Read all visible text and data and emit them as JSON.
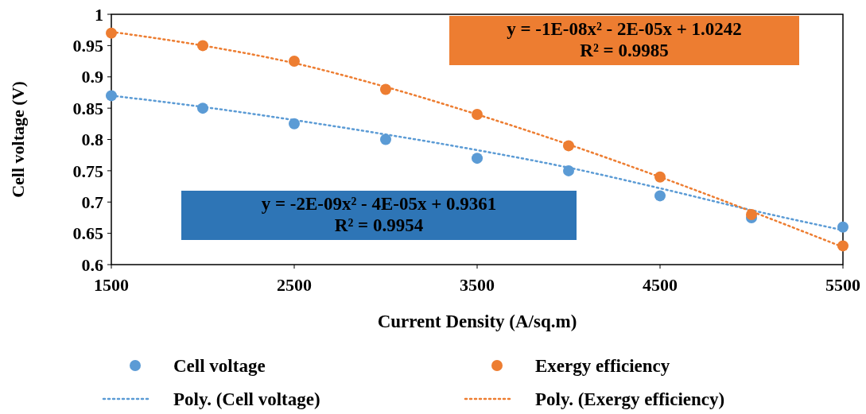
{
  "chart_data": {
    "type": "scatter",
    "xlabel": "Current Density (A/sq.m)",
    "ylabel": "Cell voltage (V)",
    "x": [
      1500,
      2000,
      2500,
      3000,
      3500,
      4000,
      4500,
      5000,
      5500
    ],
    "series": [
      {
        "name": "Cell voltage",
        "color": "#5b9bd5",
        "marker": "circle",
        "values": [
          0.87,
          0.85,
          0.825,
          0.8,
          0.77,
          0.75,
          0.71,
          0.675,
          0.66
        ]
      },
      {
        "name": "Exergy efficiency",
        "color": "#ed7d31",
        "marker": "circle",
        "values": [
          0.97,
          0.95,
          0.925,
          0.88,
          0.84,
          0.79,
          0.74,
          0.68,
          0.63
        ]
      },
      {
        "name": "Poly. (Cell voltage)",
        "type": "line",
        "color": "#5b9bd5",
        "line_style": "dotted",
        "values": [
          0.87,
          0.852,
          0.831,
          0.808,
          0.783,
          0.755,
          0.722,
          0.687,
          0.655
        ]
      },
      {
        "name": "Poly. (Exergy efficiency)",
        "type": "line",
        "color": "#ed7d31",
        "line_style": "dotted",
        "values": [
          0.972,
          0.95,
          0.922,
          0.884,
          0.84,
          0.792,
          0.74,
          0.685,
          0.628
        ]
      }
    ],
    "xlim": [
      1500,
      5500
    ],
    "xticks": [
      1500,
      2500,
      3500,
      4500,
      5500
    ],
    "ylim": [
      0.6,
      1
    ],
    "yticks": [
      {
        "value": 0.6,
        "label": "0.6"
      },
      0.65,
      0.7,
      0.75,
      0.8,
      0.85,
      0.9,
      0.95,
      1
    ],
    "grid": false,
    "legend": "bottom",
    "annotations": [
      "y = -1E-08x² - 2E-05x + 1.0242\nR² = 0.9985",
      "y = -2E-09x² - 4E-05x + 0.9361\nR² = 0.9954"
    ]
  }
}
